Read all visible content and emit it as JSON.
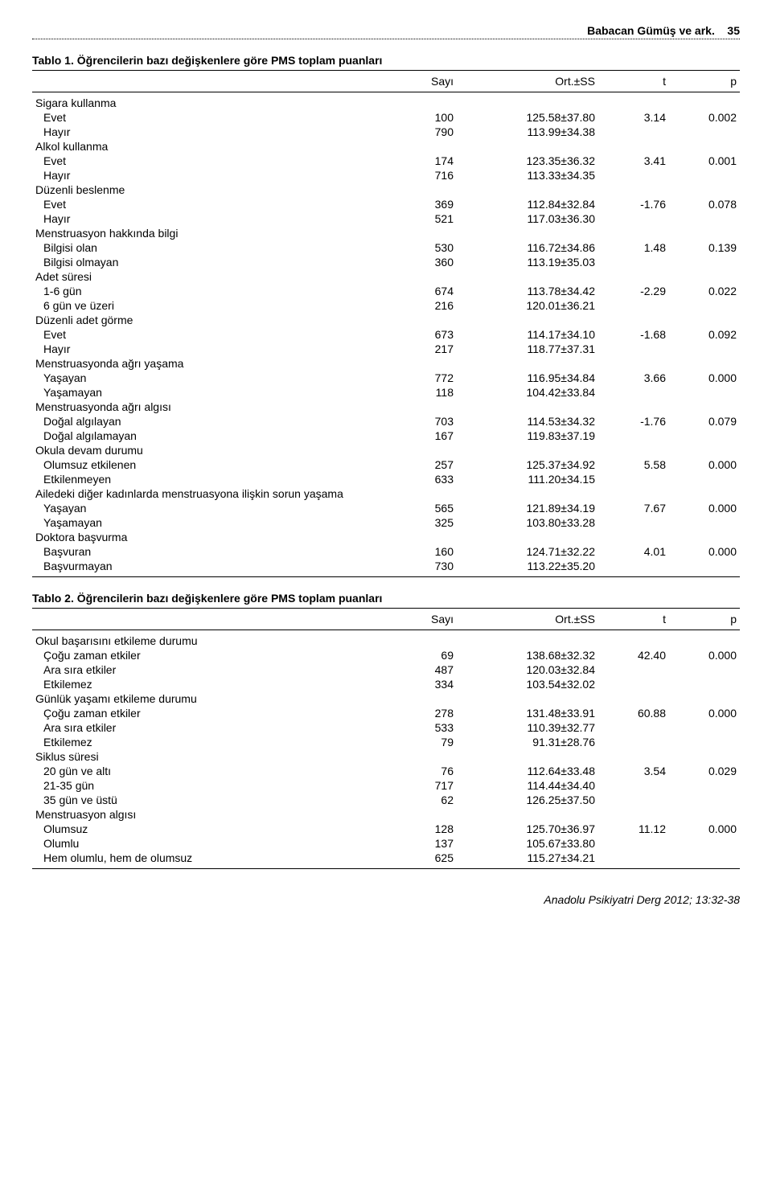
{
  "header": {
    "running_head": "Babacan Gümüş ve ark.",
    "page_number": "35"
  },
  "table1": {
    "title_prefix": "Tablo 1.",
    "title": "Öğrencilerin bazı değişkenlere göre PMS toplam puanları",
    "columns": {
      "c1": "Sayı",
      "c2": "Ort.±SS",
      "c3": "t",
      "c4": "p"
    },
    "groups": [
      {
        "label": "Sigara kullanma",
        "t": "3.14",
        "p": "0.002",
        "rows": [
          {
            "label": "Evet",
            "n": "100",
            "mean": "125.58±37.80"
          },
          {
            "label": "Hayır",
            "n": "790",
            "mean": "113.99±34.38"
          }
        ]
      },
      {
        "label": "Alkol kullanma",
        "t": "3.41",
        "p": "0.001",
        "rows": [
          {
            "label": "Evet",
            "n": "174",
            "mean": "123.35±36.32"
          },
          {
            "label": "Hayır",
            "n": "716",
            "mean": "113.33±34.35"
          }
        ]
      },
      {
        "label": "Düzenli beslenme",
        "t": "-1.76",
        "p": "0.078",
        "rows": [
          {
            "label": "Evet",
            "n": "369",
            "mean": "112.84±32.84"
          },
          {
            "label": "Hayır",
            "n": "521",
            "mean": "117.03±36.30"
          }
        ]
      },
      {
        "label": "Menstruasyon hakkında bilgi",
        "t": "1.48",
        "p": "0.139",
        "rows": [
          {
            "label": "Bilgisi olan",
            "n": "530",
            "mean": "116.72±34.86"
          },
          {
            "label": "Bilgisi olmayan",
            "n": "360",
            "mean": "113.19±35.03"
          }
        ]
      },
      {
        "label": "Adet süresi",
        "t": "-2.29",
        "p": "0.022",
        "rows": [
          {
            "label": "1-6 gün",
            "n": "674",
            "mean": "113.78±34.42"
          },
          {
            "label": "6 gün ve üzeri",
            "n": "216",
            "mean": "120.01±36.21"
          }
        ]
      },
      {
        "label": "Düzenli adet görme",
        "t": "-1.68",
        "p": "0.092",
        "rows": [
          {
            "label": "Evet",
            "n": "673",
            "mean": "114.17±34.10"
          },
          {
            "label": "Hayır",
            "n": "217",
            "mean": "118.77±37.31"
          }
        ]
      },
      {
        "label": "Menstruasyonda ağrı yaşama",
        "t": "3.66",
        "p": "0.000",
        "rows": [
          {
            "label": "Yaşayan",
            "n": "772",
            "mean": "116.95±34.84"
          },
          {
            "label": "Yaşamayan",
            "n": "118",
            "mean": "104.42±33.84"
          }
        ]
      },
      {
        "label": "Menstruasyonda ağrı algısı",
        "t": "-1.76",
        "p": "0.079",
        "rows": [
          {
            "label": "Doğal algılayan",
            "n": "703",
            "mean": "114.53±34.32"
          },
          {
            "label": "Doğal algılamayan",
            "n": "167",
            "mean": "119.83±37.19"
          }
        ]
      },
      {
        "label": "Okula devam durumu",
        "t": "5.58",
        "p": "0.000",
        "rows": [
          {
            "label": "Olumsuz etkilenen",
            "n": "257",
            "mean": "125.37±34.92"
          },
          {
            "label": "Etkilenmeyen",
            "n": "633",
            "mean": "111.20±34.15"
          }
        ]
      },
      {
        "label": "Ailedeki diğer kadınlarda menstruasyona ilişkin sorun yaşama",
        "t": "7.67",
        "p": "0.000",
        "rows": [
          {
            "label": "Yaşayan",
            "n": "565",
            "mean": "121.89±34.19"
          },
          {
            "label": "Yaşamayan",
            "n": "325",
            "mean": "103.80±33.28"
          }
        ]
      },
      {
        "label": "Doktora başvurma",
        "t": "4.01",
        "p": "0.000",
        "rows": [
          {
            "label": "Başvuran",
            "n": "160",
            "mean": "124.71±32.22"
          },
          {
            "label": "Başvurmayan",
            "n": "730",
            "mean": "113.22±35.20"
          }
        ]
      }
    ]
  },
  "table2": {
    "title_prefix": "Tablo 2.",
    "title": "Öğrencilerin bazı değişkenlere göre PMS toplam puanları",
    "columns": {
      "c1": "Sayı",
      "c2": "Ort.±SS",
      "c3": "t",
      "c4": "p"
    },
    "groups": [
      {
        "label": "Okul başarısını etkileme durumu",
        "t": "42.40",
        "p": "0.000",
        "rows": [
          {
            "label": "Çoğu zaman etkiler",
            "n": "69",
            "mean": "138.68±32.32"
          },
          {
            "label": "Ara sıra etkiler",
            "n": "487",
            "mean": "120.03±32.84"
          },
          {
            "label": "Etkilemez",
            "n": "334",
            "mean": "103.54±32.02"
          }
        ]
      },
      {
        "label": "Günlük yaşamı etkileme durumu",
        "t": "60.88",
        "p": "0.000",
        "rows": [
          {
            "label": "Çoğu zaman etkiler",
            "n": "278",
            "mean": "131.48±33.91"
          },
          {
            "label": "Ara sıra etkiler",
            "n": "533",
            "mean": "110.39±32.77"
          },
          {
            "label": "Etkilemez",
            "n": "79",
            "mean": "91.31±28.76"
          }
        ]
      },
      {
        "label": "Siklus süresi",
        "t": "3.54",
        "p": "0.029",
        "rows": [
          {
            "label": "20 gün ve altı",
            "n": "76",
            "mean": "112.64±33.48"
          },
          {
            "label": "21-35 gün",
            "n": "717",
            "mean": "114.44±34.40"
          },
          {
            "label": "35 gün ve üstü",
            "n": "62",
            "mean": "126.25±37.50"
          }
        ]
      },
      {
        "label": "Menstruasyon algısı",
        "t": "11.12",
        "p": "0.000",
        "rows": [
          {
            "label": "Olumsuz",
            "n": "128",
            "mean": "125.70±36.97"
          },
          {
            "label": "Olumlu",
            "n": "137",
            "mean": "105.67±33.80"
          },
          {
            "label": "Hem olumlu, hem de olumsuz",
            "n": "625",
            "mean": "115.27±34.21"
          }
        ]
      }
    ]
  },
  "footer": {
    "journal": "Anadolu Psikiyatri Derg 2012; 13:32-38"
  }
}
